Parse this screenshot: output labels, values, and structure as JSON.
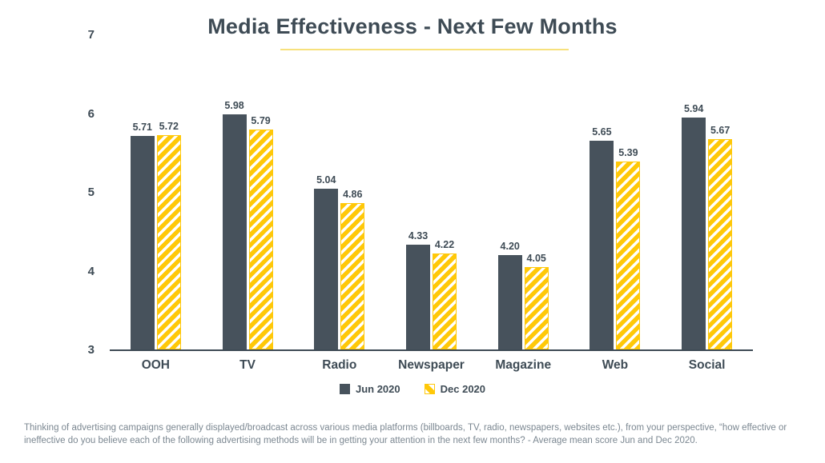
{
  "chart_data": {
    "type": "bar",
    "title": "Media Effectiveness - Next Few Months",
    "categories": [
      "OOH",
      "TV",
      "Radio",
      "Newspaper",
      "Magazine",
      "Web",
      "Social"
    ],
    "series": [
      {
        "name": "Jun 2020",
        "values": [
          5.71,
          5.98,
          5.04,
          4.33,
          4.2,
          5.65,
          5.94
        ]
      },
      {
        "name": "Dec 2020",
        "values": [
          5.72,
          5.79,
          4.86,
          4.22,
          4.05,
          5.39,
          5.67
        ]
      }
    ],
    "ylim": [
      3,
      7
    ],
    "yticks": [
      3,
      4,
      5,
      6,
      7
    ],
    "grid": false,
    "legend_position": "bottom",
    "value_labels": true,
    "value_label_decimals": 2
  },
  "colors": {
    "jun_2020": "#47525c",
    "dec_2020": "#ffc808",
    "title_ink": "#3e4b55",
    "pale_yellow_underline": "#f7e17c",
    "footnote_gray": "#7b8791"
  },
  "footnote": "Thinking of advertising campaigns generally displayed/broadcast across various media platforms (billboards, TV, radio, newspapers, websites etc.), from your perspective, “how effective or ineffective do you believe each of the following advertising methods will be in getting your attention in the next few months? - Average mean score Jun and Dec 2020."
}
